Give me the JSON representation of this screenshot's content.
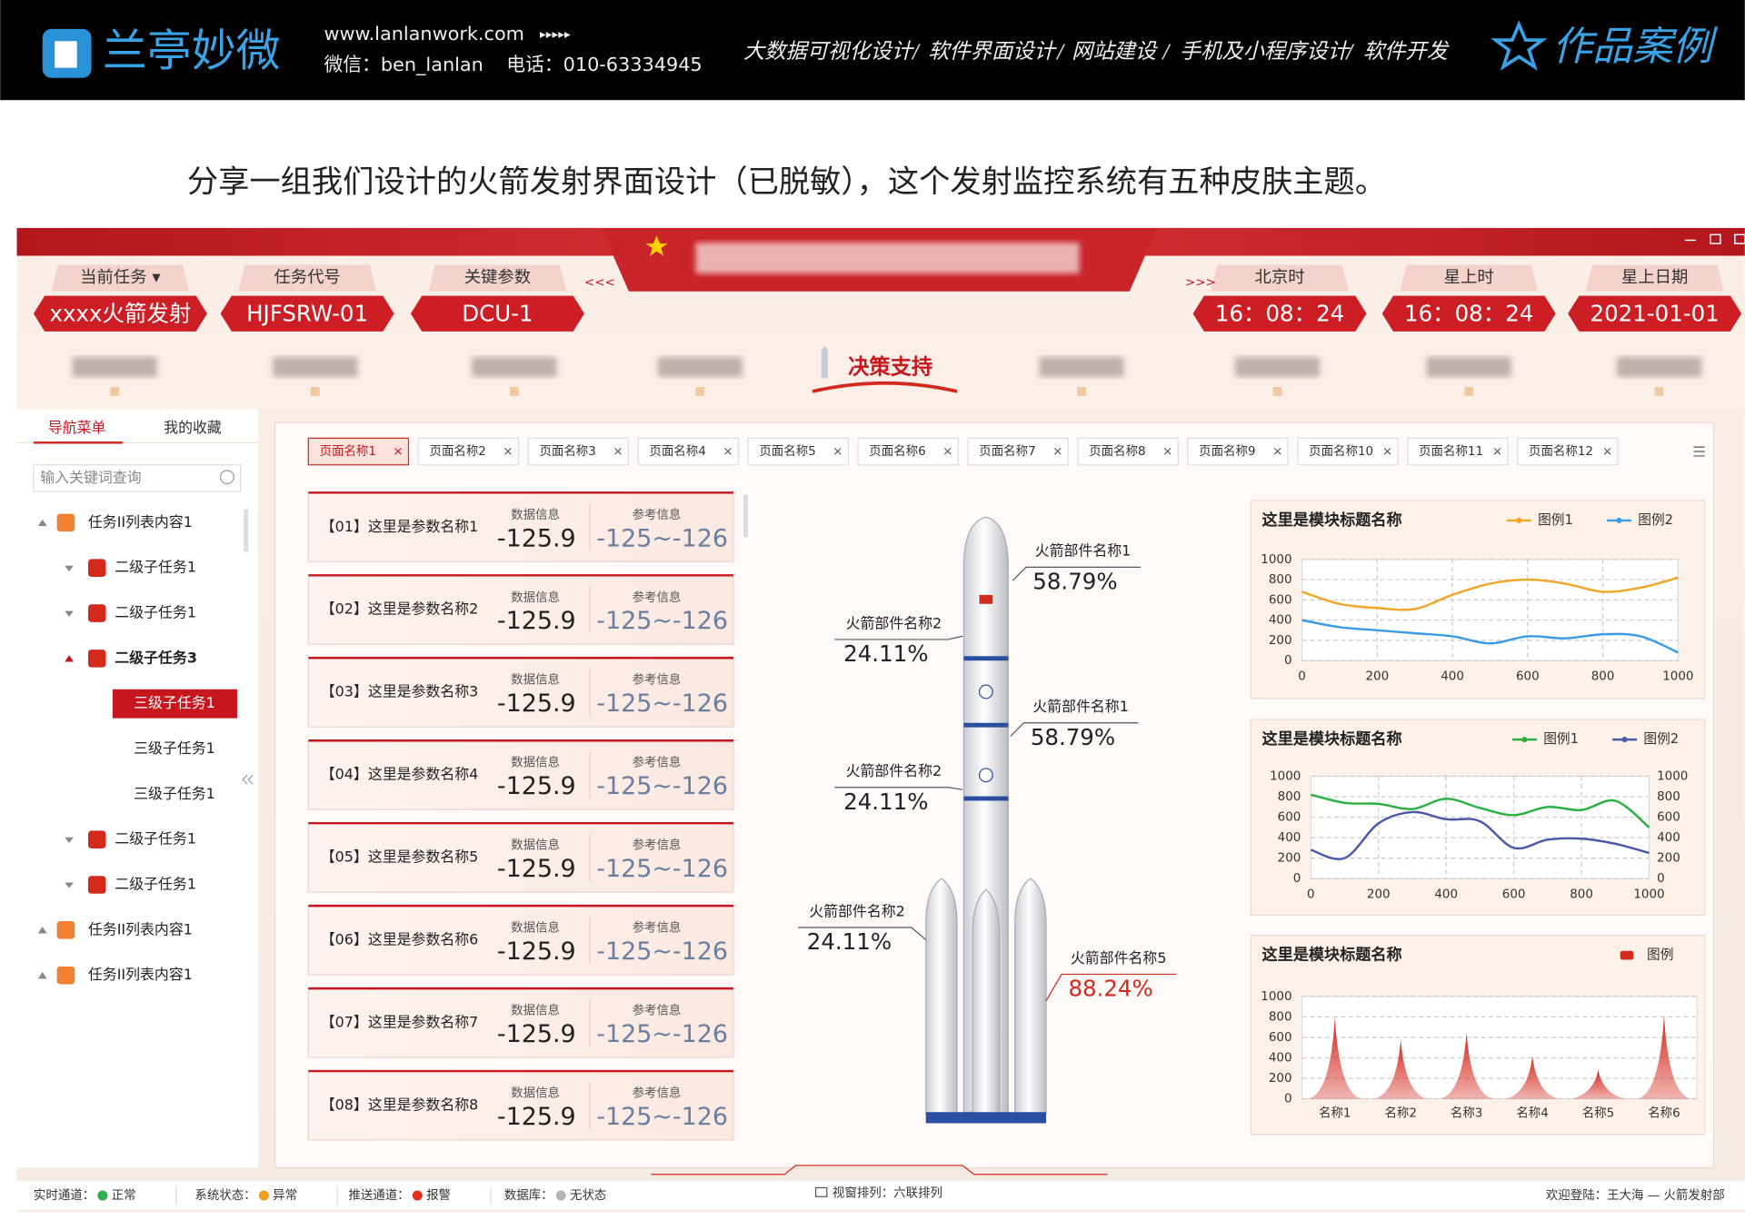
{
  "header": {
    "logo": "兰亭妙微",
    "website": "www.lanlanwork.com",
    "arrows": "▸▸▸▸▸",
    "wechat": "微信：ben_lanlan",
    "phone": "电话：010-63334945",
    "services": [
      "大数据可视化设计",
      "软件界面设计",
      "网站建设",
      "手机及小程序设计",
      "软件开发"
    ],
    "separator": "/",
    "badge": "作品案例"
  },
  "intro": "分享一组我们设计的火箭发射界面设计（已脱敏），这个发射监控系统有五种皮肤主题。",
  "app": {
    "task_fields": [
      {
        "label": "当前任务 ▾",
        "value": "xxxx火箭发射"
      },
      {
        "label": "任务代号",
        "value": "HJFSRW-01"
      },
      {
        "label": "关键参数",
        "value": "DCU-1"
      }
    ],
    "left_marker": "<<<",
    "right_marker": ">>>",
    "time_fields": [
      {
        "label": "北京时",
        "value": "16：08：24"
      },
      {
        "label": "星上时",
        "value": "16：08：24"
      },
      {
        "label": "星上日期",
        "value": "2021-01-01"
      }
    ],
    "active_nav": "决策支持",
    "sidebar": {
      "tabs": [
        "导航菜单",
        "我的收藏"
      ],
      "search_placeholder": "输入关键词查询",
      "tree": [
        {
          "text": "任务II列表内容1",
          "level": 0
        },
        {
          "text": "二级子任务1",
          "level": 1
        },
        {
          "text": "二级子任务1",
          "level": 1
        },
        {
          "text": "二级子任务3",
          "level": 1,
          "open": true
        },
        {
          "text": "三级子任务1",
          "level": 2,
          "selected": true
        },
        {
          "text": "三级子任务1",
          "level": 2
        },
        {
          "text": "三级子任务1",
          "level": 2
        },
        {
          "text": "二级子任务1",
          "level": 1
        },
        {
          "text": "二级子任务1",
          "level": 1
        },
        {
          "text": "任务II列表内容1",
          "level": 0
        },
        {
          "text": "任务II列表内容1",
          "level": 0
        }
      ]
    },
    "tabs": [
      "页面名称1",
      "页面名称2",
      "页面名称3",
      "页面名称4",
      "页面名称5",
      "页面名称6",
      "页面名称7",
      "页面名称8",
      "页面名称9",
      "页面名称10",
      "页面名称11",
      "页面名称12"
    ],
    "tab_close": "×",
    "params": [
      {
        "name": "【01】这里是参数名称1",
        "data_label": "数据信息",
        "data_value": -125.9,
        "ref_label": "参考信息",
        "ref_value": "-125~-126"
      },
      {
        "name": "【02】这里是参数名称2",
        "data_label": "数据信息",
        "data_value": -125.9,
        "ref_label": "参考信息",
        "ref_value": "-125~-126"
      },
      {
        "name": "【03】这里是参数名称3",
        "data_label": "数据信息",
        "data_value": -125.9,
        "ref_label": "参考信息",
        "ref_value": "-125~-126"
      },
      {
        "name": "【04】这里是参数名称4",
        "data_label": "数据信息",
        "data_value": -125.9,
        "ref_label": "参考信息",
        "ref_value": "-125~-126"
      },
      {
        "name": "【05】这里是参数名称5",
        "data_label": "数据信息",
        "data_value": -125.9,
        "ref_label": "参考信息",
        "ref_value": "-125~-126"
      },
      {
        "name": "【06】这里是参数名称6",
        "data_label": "数据信息",
        "data_value": -125.9,
        "ref_label": "参考信息",
        "ref_value": "-125~-126"
      },
      {
        "name": "【07】这里是参数名称7",
        "data_label": "数据信息",
        "data_value": -125.9,
        "ref_label": "参考信息",
        "ref_value": "-125~-126"
      },
      {
        "name": "【08】这里是参数名称8",
        "data_label": "数据信息",
        "data_value": -125.9,
        "ref_label": "参考信息",
        "ref_value": "-125~-126"
      }
    ],
    "rocket_labels": [
      {
        "name": "火箭部件名称1",
        "value": "58.79%"
      },
      {
        "name": "火箭部件名称2",
        "value": "24.11%"
      },
      {
        "name": "火箭部件名称1",
        "value": "58.79%"
      },
      {
        "name": "火箭部件名称2",
        "value": "24.11%"
      },
      {
        "name": "火箭部件名称2",
        "value": "24.11%"
      },
      {
        "name": "火箭部件名称5",
        "value": "88.24%",
        "alert": true
      }
    ],
    "status": [
      {
        "label": "实时通道：",
        "state": "正常",
        "color": "#2bb24c"
      },
      {
        "label": "系统状态：",
        "state": "异常",
        "color": "#f0a020"
      },
      {
        "label": "推送通道：",
        "state": "报警",
        "color": "#e0321e"
      },
      {
        "label": "数据库：",
        "state": "无状态",
        "color": "#b4b4b4"
      }
    ],
    "window_layout": "视窗排列：六联排列",
    "welcome": "欢迎登陆：王大海 — 火箭发射部"
  },
  "charts": [
    {
      "type": "line",
      "title": "这里是模块标题名称",
      "x": [
        0,
        100,
        200,
        300,
        400,
        500,
        600,
        700,
        800,
        900,
        1000
      ],
      "xlim": [
        0,
        1000
      ],
      "xticks": [
        0,
        200,
        400,
        600,
        800,
        1000
      ],
      "ylim": [
        0,
        1000
      ],
      "yticks": [
        0,
        200,
        400,
        600,
        800,
        1000
      ],
      "grid": true,
      "series": [
        {
          "name": "图例1",
          "color": "#f0a626",
          "values": [
            680,
            560,
            520,
            510,
            650,
            760,
            800,
            760,
            680,
            720,
            820
          ]
        },
        {
          "name": "图例2",
          "color": "#3b9be6",
          "values": [
            400,
            330,
            300,
            270,
            240,
            170,
            240,
            220,
            260,
            240,
            80
          ]
        }
      ]
    },
    {
      "type": "line",
      "title": "这里是模块标题名称",
      "x": [
        0,
        100,
        200,
        300,
        400,
        500,
        600,
        700,
        800,
        900,
        1000
      ],
      "xlim": [
        0,
        1000
      ],
      "xticks": [
        0,
        200,
        400,
        600,
        800,
        1000
      ],
      "ylim": [
        0,
        1000
      ],
      "yticks": [
        0,
        200,
        400,
        600,
        800,
        1000
      ],
      "y2lim": [
        0,
        1000
      ],
      "y2ticks": [
        0,
        200,
        400,
        600,
        800,
        1000
      ],
      "grid": true,
      "series": [
        {
          "name": "图例1",
          "color": "#2ab040",
          "values": [
            820,
            740,
            730,
            680,
            780,
            690,
            620,
            700,
            670,
            760,
            500
          ]
        },
        {
          "name": "图例2",
          "color": "#4a5aa8",
          "axis": "y2",
          "values": [
            280,
            200,
            540,
            650,
            580,
            560,
            300,
            380,
            390,
            340,
            250
          ]
        }
      ]
    },
    {
      "type": "area",
      "title": "这里是模块标题名称",
      "categories": [
        "名称1",
        "名称2",
        "名称3",
        "名称4",
        "名称5",
        "名称6"
      ],
      "ylim": [
        0,
        1000
      ],
      "yticks": [
        0,
        200,
        400,
        600,
        800,
        1000
      ],
      "grid": true,
      "series": [
        {
          "name": "图例",
          "color": "#d42a1e",
          "values": [
            800,
            580,
            650,
            420,
            280,
            820
          ]
        }
      ]
    }
  ]
}
